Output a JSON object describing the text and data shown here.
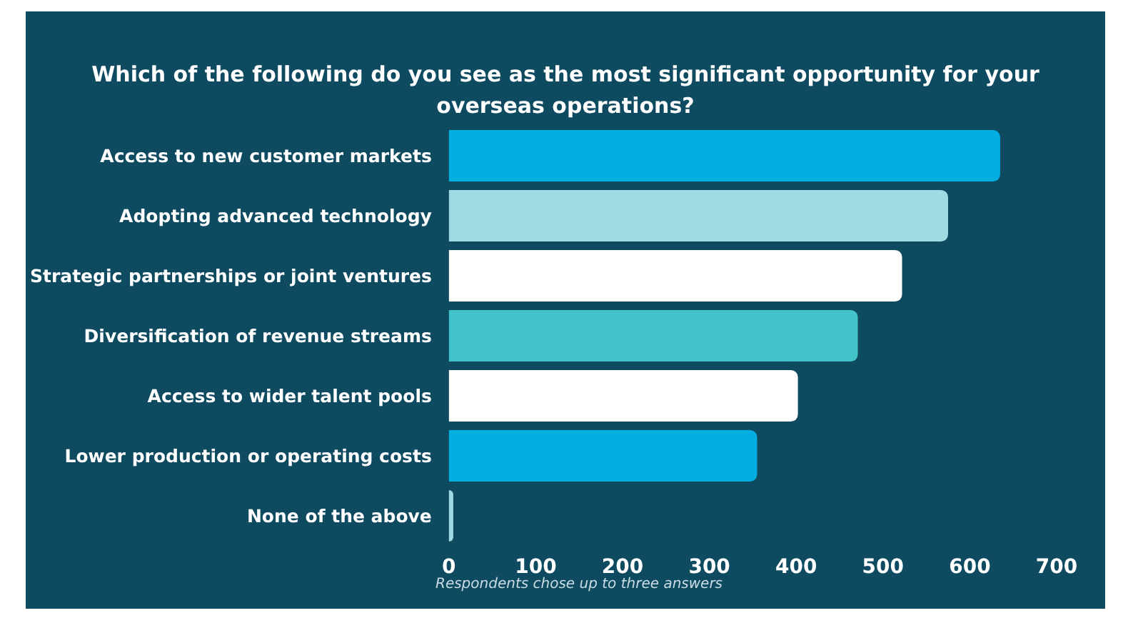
{
  "chart_data": {
    "type": "bar",
    "orientation": "horizontal",
    "title": "Which of the following do you see as the most significant opportunity for your\noverseas operations?",
    "categories": [
      "Access to new customer markets",
      "Adopting advanced technology",
      "Strategic partnerships or joint ventures",
      "Diversification of revenue streams",
      "Access to wider talent pools",
      "Lower production or operating costs",
      "None of the above"
    ],
    "values": [
      635,
      575,
      522,
      471,
      402,
      355,
      5
    ],
    "colors": [
      "#05aee0",
      "#a0dae2",
      "#ffffff",
      "#42c3ca",
      "#ffffff",
      "#05aee0",
      "#a0dae2"
    ],
    "xlim": [
      0,
      700
    ],
    "xticks": [
      0,
      100,
      200,
      300,
      400,
      500,
      600,
      700
    ],
    "grid": false,
    "annotations": [
      "Respondents chose up to three answers"
    ]
  }
}
